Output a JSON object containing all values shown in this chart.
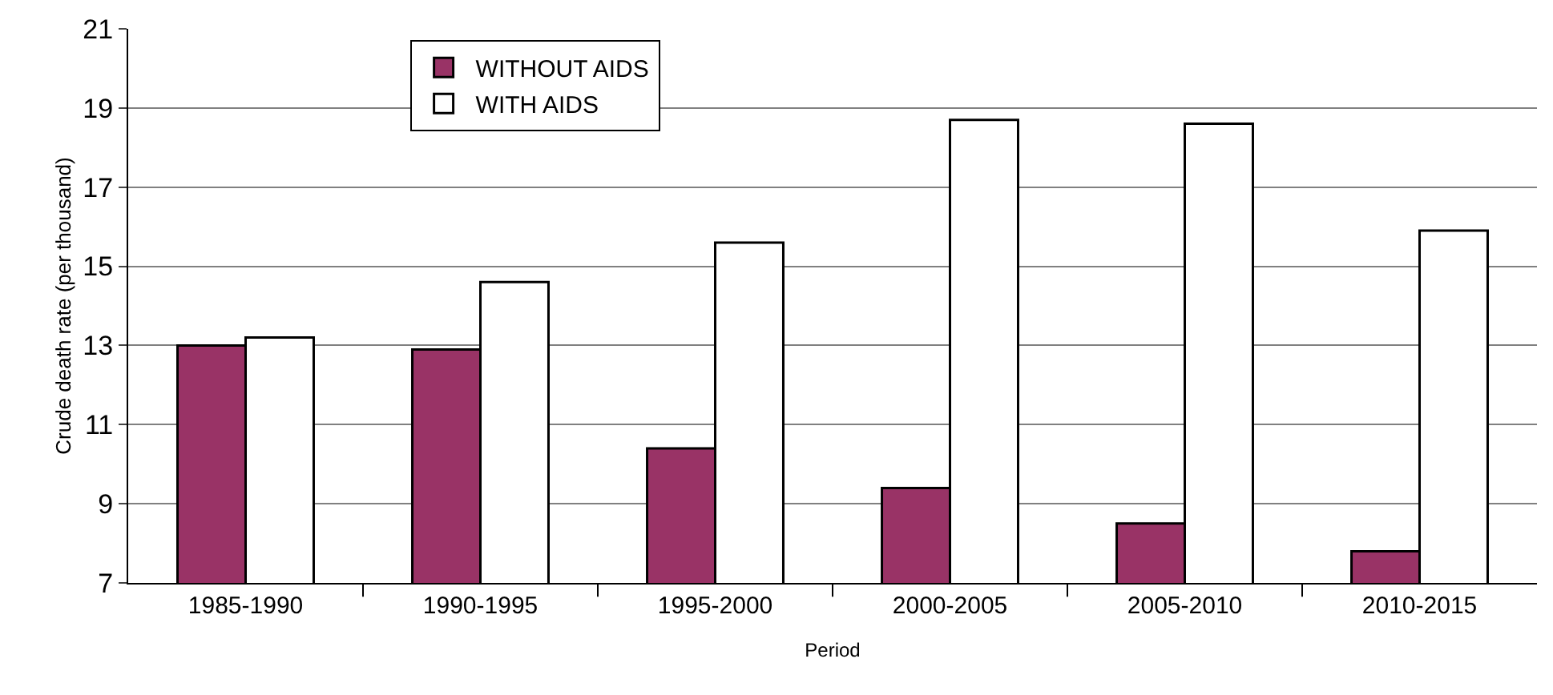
{
  "chart_data": {
    "type": "bar",
    "xlabel": "Period",
    "ylabel": "Crude death rate (per thousand)",
    "categories": [
      "1985-1990",
      "1990-1995",
      "1995-2000",
      "2000-2005",
      "2005-2010",
      "2010-2015"
    ],
    "series": [
      {
        "name": "WITHOUT AIDS",
        "color": "#993366",
        "values": [
          13.0,
          12.9,
          10.4,
          9.4,
          8.5,
          7.8
        ]
      },
      {
        "name": "WITH AIDS",
        "color": "#ffffff",
        "values": [
          13.2,
          14.6,
          15.6,
          18.7,
          18.6,
          15.9
        ]
      }
    ],
    "ylim": [
      7,
      21
    ],
    "yticks": [
      7,
      9,
      11,
      13,
      15,
      17,
      19,
      21
    ],
    "grid": "y",
    "legend": "top"
  }
}
